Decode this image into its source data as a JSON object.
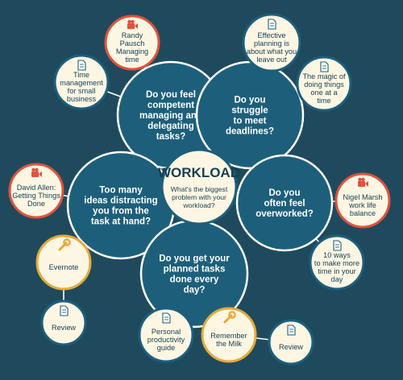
{
  "colors": {
    "background": "#1f4a5d",
    "hub_fill": "#fdf6e3",
    "question_fill": "#1d5f7b",
    "question_stroke": "#ffffff",
    "resource_fill": "#fdf6e3",
    "video_ring": "#e0523d",
    "tool_ring": "#e6a93b",
    "doc_ring": "#1d5f7b",
    "dark_text": "#163f52",
    "light_text": "#ffffff",
    "connector": "#ffffff"
  },
  "hub": {
    "title": "WORKLOAD",
    "subtitle": [
      "What's the biggest",
      "problem with your",
      "workload?"
    ]
  },
  "questions": [
    {
      "id": "q_delegating",
      "lines": [
        "Do you feel",
        "competent",
        "managing and",
        "delegating",
        "tasks?"
      ]
    },
    {
      "id": "q_deadlines",
      "lines": [
        "Do you",
        "struggle",
        "to meet",
        "deadlines?"
      ]
    },
    {
      "id": "q_distracting",
      "lines": [
        "Too many",
        "ideas distracting",
        "you from the",
        "task at hand?"
      ]
    },
    {
      "id": "q_overworked",
      "lines": [
        "Do you",
        "often feel",
        "overworked?"
      ]
    },
    {
      "id": "q_planned",
      "lines": [
        "Do you get your",
        "planned tasks",
        "done every",
        "day?"
      ]
    }
  ],
  "resources": [
    {
      "id": "r_pausch",
      "kind": "video",
      "icon": "video-camera-icon",
      "lines": [
        "Randy",
        "Pausch",
        "Managing",
        "time"
      ]
    },
    {
      "id": "r_timemgmt",
      "kind": "doc",
      "icon": "document-icon",
      "lines": [
        "Time",
        "management",
        "for small",
        "business"
      ]
    },
    {
      "id": "r_effective",
      "kind": "doc",
      "icon": "document-icon",
      "lines": [
        "Effective",
        "planning is",
        "about what you",
        "leave out"
      ]
    },
    {
      "id": "r_magic",
      "kind": "doc",
      "icon": "document-icon",
      "lines": [
        "The magic of",
        "doing things",
        "one at a",
        "time"
      ]
    },
    {
      "id": "r_allen",
      "kind": "video",
      "icon": "video-camera-icon",
      "lines": [
        "David Allen:",
        "Getting Things",
        "Done"
      ]
    },
    {
      "id": "r_evernote",
      "kind": "tool",
      "icon": "wrench-icon",
      "lines": [
        "Evernote"
      ]
    },
    {
      "id": "r_review1",
      "kind": "doc",
      "icon": "document-icon",
      "lines": [
        "Review"
      ]
    },
    {
      "id": "r_marsh",
      "kind": "video",
      "icon": "video-camera-icon",
      "lines": [
        "Nigel Marsh",
        "work life",
        "balance"
      ]
    },
    {
      "id": "r_tenways",
      "kind": "doc",
      "icon": "document-icon",
      "lines": [
        "10 ways",
        "to make more",
        "time in your",
        "day"
      ]
    },
    {
      "id": "r_personal",
      "kind": "doc",
      "icon": "document-icon",
      "lines": [
        "Personal",
        "productivity",
        "guide"
      ]
    },
    {
      "id": "r_milk",
      "kind": "tool",
      "icon": "wrench-icon",
      "lines": [
        "Remember",
        "the Milk"
      ]
    },
    {
      "id": "r_review2",
      "kind": "doc",
      "icon": "document-icon",
      "lines": [
        "Review"
      ]
    }
  ]
}
